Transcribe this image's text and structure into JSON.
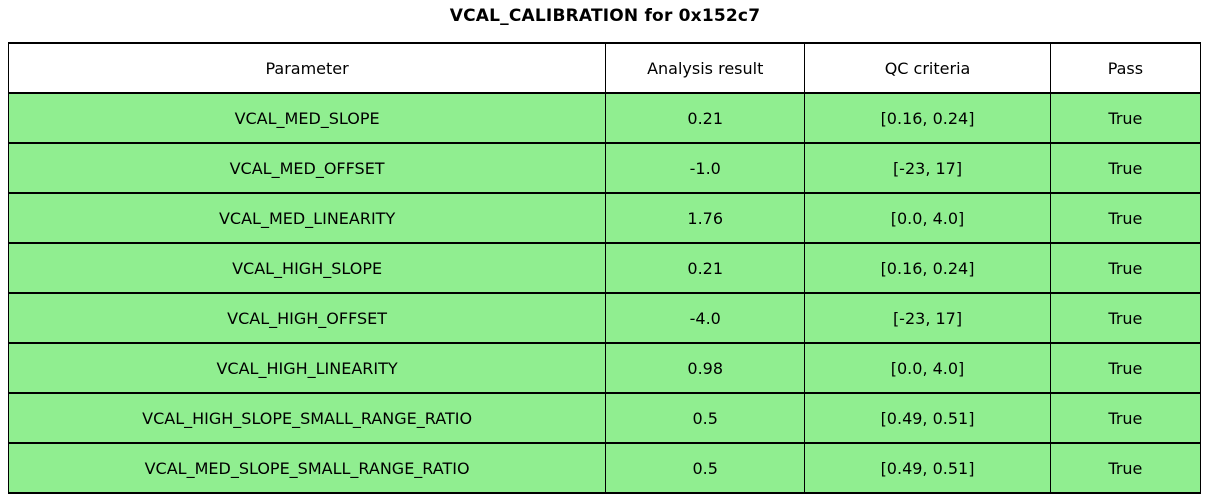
{
  "title": "VCAL_CALIBRATION for 0x152c7",
  "chart_data": {
    "type": "table",
    "title": "VCAL_CALIBRATION for 0x152c7",
    "columns": [
      "Parameter",
      "Analysis result",
      "QC criteria",
      "Pass"
    ],
    "rows": [
      {
        "parameter": "VCAL_MED_SLOPE",
        "result": "0.21",
        "qc": "[0.16, 0.24]",
        "pass": "True"
      },
      {
        "parameter": "VCAL_MED_OFFSET",
        "result": "-1.0",
        "qc": "[-23, 17]",
        "pass": "True"
      },
      {
        "parameter": "VCAL_MED_LINEARITY",
        "result": "1.76",
        "qc": "[0.0, 4.0]",
        "pass": "True"
      },
      {
        "parameter": "VCAL_HIGH_SLOPE",
        "result": "0.21",
        "qc": "[0.16, 0.24]",
        "pass": "True"
      },
      {
        "parameter": "VCAL_HIGH_OFFSET",
        "result": "-4.0",
        "qc": "[-23, 17]",
        "pass": "True"
      },
      {
        "parameter": "VCAL_HIGH_LINEARITY",
        "result": "0.98",
        "qc": "[0.0, 4.0]",
        "pass": "True"
      },
      {
        "parameter": "VCAL_HIGH_SLOPE_SMALL_RANGE_RATIO",
        "result": "0.5",
        "qc": "[0.49, 0.51]",
        "pass": "True"
      },
      {
        "parameter": "VCAL_MED_SLOPE_SMALL_RANGE_RATIO",
        "result": "0.5",
        "qc": "[0.49, 0.51]",
        "pass": "True"
      }
    ],
    "layout": {
      "header_position": "top",
      "grid": true
    },
    "colors": {
      "row_bg": "#90ee90",
      "header_bg": "#ffffff",
      "border": "#000000",
      "text": "#000000"
    }
  }
}
